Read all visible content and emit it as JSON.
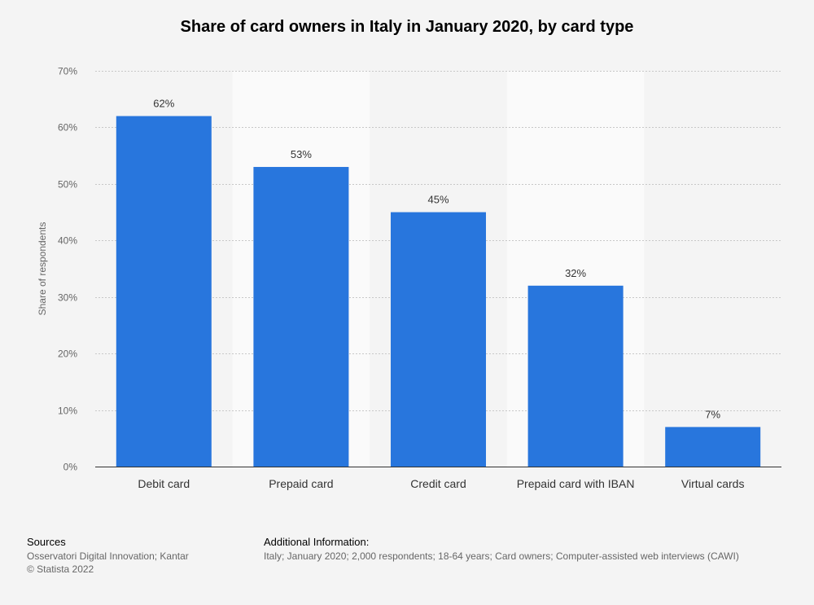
{
  "chart_data": {
    "type": "bar",
    "title": "Share of card owners in Italy in January 2020, by card type",
    "xlabel": "",
    "ylabel": "Share of respondents",
    "categories": [
      "Debit card",
      "Prepaid card",
      "Credit card",
      "Prepaid card with IBAN",
      "Virtual cards"
    ],
    "values": [
      62,
      53,
      45,
      32,
      7
    ],
    "value_labels": [
      "62%",
      "53%",
      "45%",
      "32%",
      "7%"
    ],
    "ylim": [
      0,
      70
    ],
    "yticks": [
      0,
      10,
      20,
      30,
      40,
      50,
      60,
      70
    ],
    "ytick_labels": [
      "0%",
      "10%",
      "20%",
      "30%",
      "40%",
      "50%",
      "60%",
      "70%"
    ],
    "grid": true,
    "legend": false,
    "bar_color": "#2876dd"
  },
  "footer": {
    "sources_heading": "Sources",
    "sources_text": "Osservatori Digital Innovation; Kantar",
    "copyright": "© Statista 2022",
    "additional_heading": "Additional Information:",
    "additional_text": "Italy; January 2020; 2,000 respondents; 18-64 years; Card owners; Computer-assisted web interviews (CAWI)"
  }
}
